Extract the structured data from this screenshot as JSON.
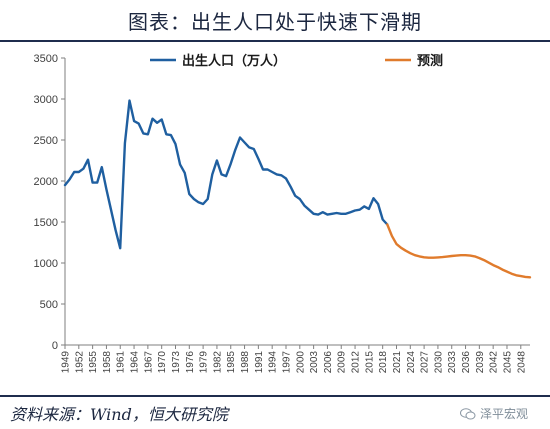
{
  "title": "图表：出生人口处于快速下滑期",
  "source": "资料来源：Wind，恒大研究院",
  "watermark": "泽平宏观",
  "chart_data": {
    "type": "line",
    "ylim": [
      0,
      3500
    ],
    "yticks": [
      0,
      500,
      1000,
      1500,
      2000,
      2500,
      3000,
      3500
    ],
    "xlim": [
      1949,
      2050
    ],
    "xticks": [
      1949,
      1952,
      1955,
      1958,
      1961,
      1964,
      1967,
      1970,
      1973,
      1976,
      1979,
      1982,
      1985,
      1988,
      1991,
      1994,
      1997,
      2000,
      2003,
      2006,
      2009,
      2012,
      2015,
      2018,
      2021,
      2024,
      2027,
      2030,
      2033,
      2036,
      2039,
      2042,
      2045,
      2048
    ],
    "legend_position": "top",
    "series": [
      {
        "name": "出生人口（万人）",
        "color": "#1f5fa0",
        "x": [
          1949,
          1950,
          1951,
          1952,
          1953,
          1954,
          1955,
          1956,
          1957,
          1958,
          1959,
          1960,
          1961,
          1962,
          1963,
          1964,
          1965,
          1966,
          1967,
          1968,
          1969,
          1970,
          1971,
          1972,
          1973,
          1974,
          1975,
          1976,
          1977,
          1978,
          1979,
          1980,
          1981,
          1982,
          1983,
          1984,
          1985,
          1986,
          1987,
          1988,
          1989,
          1990,
          1991,
          1992,
          1993,
          1994,
          1995,
          1996,
          1997,
          1998,
          1999,
          2000,
          2001,
          2002,
          2003,
          2004,
          2005,
          2006,
          2007,
          2008,
          2009,
          2010,
          2011,
          2012,
          2013,
          2014,
          2015,
          2016,
          2017,
          2018,
          2019
        ],
        "values": [
          1950,
          2020,
          2110,
          2110,
          2150,
          2260,
          1980,
          1980,
          2170,
          1900,
          1650,
          1400,
          1180,
          2460,
          2980,
          2730,
          2700,
          2580,
          2570,
          2760,
          2710,
          2750,
          2570,
          2560,
          2450,
          2200,
          2100,
          1840,
          1780,
          1740,
          1720,
          1780,
          2080,
          2250,
          2080,
          2060,
          2210,
          2380,
          2530,
          2470,
          2410,
          2390,
          2270,
          2140,
          2140,
          2110,
          2080,
          2070,
          2030,
          1930,
          1820,
          1780,
          1700,
          1650,
          1600,
          1590,
          1620,
          1590,
          1600,
          1610,
          1600,
          1600,
          1620,
          1640,
          1650,
          1690,
          1660,
          1790,
          1720,
          1530,
          1470
        ]
      },
      {
        "name": "预测",
        "color": "#e07b2c",
        "x": [
          2019,
          2020,
          2021,
          2022,
          2023,
          2024,
          2025,
          2026,
          2027,
          2028,
          2029,
          2030,
          2031,
          2032,
          2033,
          2034,
          2035,
          2036,
          2037,
          2038,
          2039,
          2040,
          2041,
          2042,
          2043,
          2044,
          2045,
          2046,
          2047,
          2048,
          2049,
          2050
        ],
        "values": [
          1470,
          1330,
          1230,
          1185,
          1150,
          1120,
          1095,
          1080,
          1070,
          1065,
          1065,
          1068,
          1072,
          1078,
          1085,
          1090,
          1095,
          1095,
          1090,
          1080,
          1060,
          1035,
          1005,
          975,
          950,
          920,
          895,
          870,
          850,
          840,
          830,
          825
        ]
      }
    ]
  }
}
